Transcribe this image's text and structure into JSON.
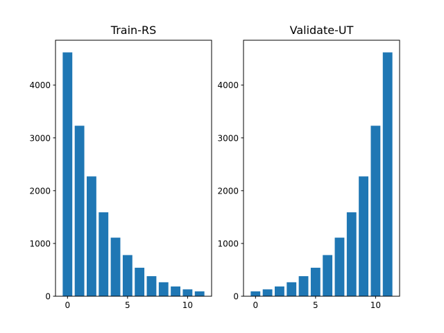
{
  "chart_data": [
    {
      "type": "bar",
      "title": "Train-RS",
      "x": [
        0,
        1,
        2,
        3,
        4,
        5,
        6,
        7,
        8,
        9,
        10,
        11
      ],
      "values": [
        4620,
        3230,
        2270,
        1590,
        1110,
        780,
        540,
        380,
        265,
        185,
        130,
        92
      ],
      "xlim": [
        -1,
        12
      ],
      "ylim": [
        0,
        4850
      ],
      "xticks": [
        0,
        5,
        10
      ],
      "yticks": [
        0,
        1000,
        2000,
        3000,
        4000
      ],
      "bar_color": "#1f77b4",
      "xlabel": "",
      "ylabel": ""
    },
    {
      "type": "bar",
      "title": "Validate-UT",
      "x": [
        0,
        1,
        2,
        3,
        4,
        5,
        6,
        7,
        8,
        9,
        10,
        11
      ],
      "values": [
        92,
        130,
        185,
        265,
        380,
        540,
        780,
        1110,
        1590,
        2270,
        3230,
        4620
      ],
      "xlim": [
        -1,
        12
      ],
      "ylim": [
        0,
        4850
      ],
      "xticks": [
        0,
        5,
        10
      ],
      "yticks": [
        0,
        1000,
        2000,
        3000,
        4000
      ],
      "bar_color": "#1f77b4",
      "xlabel": "",
      "ylabel": ""
    }
  ]
}
